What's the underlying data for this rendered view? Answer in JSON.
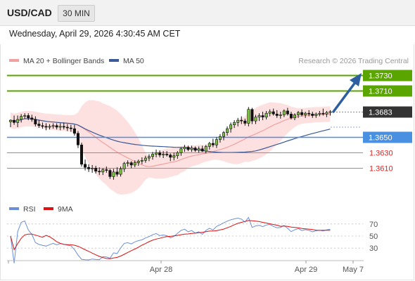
{
  "header": {
    "pair": "USD/CAD",
    "timeframe": "30 MIN",
    "datetime": "Wednesday, April 29, 2026 4:30:45 AM CET"
  },
  "legend": {
    "ma20_label": "MA 20 + Bollinger Bands",
    "ma50_label": "MA 50",
    "credit": "Research © 2026 Trading Central",
    "rsi_label": "RSI",
    "rsi_ma_label": "9MA"
  },
  "colors": {
    "bb_fill": "#fde1e1",
    "ma20": "#f2a0a0",
    "ma50": "#3b5998",
    "target": "#5aa500",
    "pivot": "#4a90e2",
    "support": "#e07070",
    "arrow": "#2d5fa0",
    "rsi": "#6a8fd8",
    "rsi_ma": "#dd1111"
  },
  "levels": [
    {
      "value": 1.373,
      "label": "1.3730",
      "kind": "target"
    },
    {
      "value": 1.371,
      "label": "1.3710",
      "kind": "target"
    },
    {
      "value": 1.3683,
      "label": "1.3683",
      "kind": "last"
    },
    {
      "value": 1.365,
      "label": "1.3650",
      "kind": "pivot"
    },
    {
      "value": 1.363,
      "label": "1.3630",
      "kind": "support"
    },
    {
      "value": 1.361,
      "label": "1.3610",
      "kind": "support"
    }
  ],
  "chart_data": [
    {
      "type": "candlestick",
      "title": "USD/CAD",
      "x_tick_labels": [
        "Apr 28",
        "Apr 29",
        "May 7"
      ],
      "y_range": [
        1.357,
        1.374
      ],
      "series": [
        {
          "name": "MA 20 + Bollinger Bands",
          "values": []
        },
        {
          "name": "MA 50",
          "values": []
        }
      ],
      "candles": [
        [
          1.367,
          1.3673,
          1.3663,
          1.3672
        ],
        [
          1.3672,
          1.3678,
          1.3666,
          1.3669
        ],
        [
          1.3669,
          1.3678,
          1.3663,
          1.3673
        ],
        [
          1.3673,
          1.368,
          1.3669,
          1.3677
        ],
        [
          1.3677,
          1.3681,
          1.3674,
          1.3678
        ],
        [
          1.3678,
          1.3681,
          1.3672,
          1.3675
        ],
        [
          1.3675,
          1.3679,
          1.367,
          1.3673
        ],
        [
          1.3673,
          1.3677,
          1.3664,
          1.3667
        ],
        [
          1.3667,
          1.3672,
          1.3662,
          1.3665
        ],
        [
          1.3665,
          1.3669,
          1.3661,
          1.3664
        ],
        [
          1.3664,
          1.3668,
          1.3659,
          1.3663
        ],
        [
          1.3663,
          1.3667,
          1.366,
          1.3664
        ],
        [
          1.3664,
          1.3668,
          1.3661,
          1.3665
        ],
        [
          1.3665,
          1.3668,
          1.366,
          1.3663
        ],
        [
          1.3663,
          1.3668,
          1.3659,
          1.3664
        ],
        [
          1.3664,
          1.3669,
          1.366,
          1.3663
        ],
        [
          1.3663,
          1.3667,
          1.3658,
          1.3662
        ],
        [
          1.3662,
          1.3666,
          1.3657,
          1.3661
        ],
        [
          1.3661,
          1.3666,
          1.3652,
          1.3655
        ],
        [
          1.3655,
          1.3658,
          1.3636,
          1.364
        ],
        [
          1.364,
          1.3643,
          1.3612,
          1.3615
        ],
        [
          1.3615,
          1.3621,
          1.3607,
          1.3611
        ],
        [
          1.3611,
          1.3615,
          1.3605,
          1.3609
        ],
        [
          1.3609,
          1.3614,
          1.3604,
          1.361
        ],
        [
          1.361,
          1.3613,
          1.3603,
          1.3606
        ],
        [
          1.3606,
          1.3611,
          1.3601,
          1.3605
        ],
        [
          1.3605,
          1.361,
          1.3601,
          1.3608
        ],
        [
          1.3608,
          1.3612,
          1.3604,
          1.3607
        ],
        [
          1.3607,
          1.3609,
          1.3596,
          1.3599
        ],
        [
          1.3599,
          1.3609,
          1.3595,
          1.3605
        ],
        [
          1.3605,
          1.3611,
          1.3599,
          1.3602
        ],
        [
          1.3602,
          1.3612,
          1.3599,
          1.3609
        ],
        [
          1.3609,
          1.3618,
          1.3605,
          1.3616
        ],
        [
          1.3616,
          1.362,
          1.3612,
          1.3617
        ],
        [
          1.3617,
          1.3619,
          1.361,
          1.3614
        ],
        [
          1.3614,
          1.362,
          1.3611,
          1.3617
        ],
        [
          1.3617,
          1.3621,
          1.3613,
          1.3619
        ],
        [
          1.3619,
          1.3624,
          1.3615,
          1.362
        ],
        [
          1.362,
          1.3626,
          1.3617,
          1.3623
        ],
        [
          1.3623,
          1.3628,
          1.3619,
          1.3625
        ],
        [
          1.3625,
          1.3631,
          1.3621,
          1.3628
        ],
        [
          1.3628,
          1.3634,
          1.3624,
          1.363
        ],
        [
          1.363,
          1.3633,
          1.3624,
          1.3627
        ],
        [
          1.3627,
          1.3632,
          1.3623,
          1.3628
        ],
        [
          1.3628,
          1.3632,
          1.3625,
          1.3627
        ],
        [
          1.3627,
          1.3629,
          1.3619,
          1.3624
        ],
        [
          1.3624,
          1.363,
          1.362,
          1.3626
        ],
        [
          1.3626,
          1.3632,
          1.3622,
          1.363
        ],
        [
          1.363,
          1.3637,
          1.3626,
          1.3635
        ],
        [
          1.3635,
          1.364,
          1.3631,
          1.3637
        ],
        [
          1.3637,
          1.3639,
          1.3632,
          1.3634
        ],
        [
          1.3634,
          1.3639,
          1.3631,
          1.3636
        ],
        [
          1.3636,
          1.3638,
          1.3631,
          1.3633
        ],
        [
          1.3633,
          1.3638,
          1.363,
          1.3635
        ],
        [
          1.3635,
          1.3639,
          1.3631,
          1.3632
        ],
        [
          1.3632,
          1.364,
          1.3629,
          1.3638
        ],
        [
          1.3638,
          1.3644,
          1.3634,
          1.3642
        ],
        [
          1.3642,
          1.3648,
          1.3637,
          1.364
        ],
        [
          1.364,
          1.365,
          1.3636,
          1.3647
        ],
        [
          1.3647,
          1.3654,
          1.3643,
          1.3651
        ],
        [
          1.3651,
          1.3658,
          1.3646,
          1.3656
        ],
        [
          1.3656,
          1.3664,
          1.3652,
          1.3661
        ],
        [
          1.3661,
          1.3669,
          1.3656,
          1.3666
        ],
        [
          1.3666,
          1.3672,
          1.3662,
          1.3669
        ],
        [
          1.3669,
          1.3675,
          1.3664,
          1.3672
        ],
        [
          1.3672,
          1.3677,
          1.3667,
          1.3671
        ],
        [
          1.3671,
          1.3674,
          1.3665,
          1.3668
        ],
        [
          1.3668,
          1.3689,
          1.3664,
          1.3686
        ],
        [
          1.3686,
          1.3688,
          1.3667,
          1.3671
        ],
        [
          1.3671,
          1.3679,
          1.3667,
          1.3676
        ],
        [
          1.3676,
          1.3681,
          1.3671,
          1.3678
        ],
        [
          1.3678,
          1.3683,
          1.3672,
          1.3676
        ],
        [
          1.3676,
          1.3684,
          1.3673,
          1.3681
        ],
        [
          1.3681,
          1.3686,
          1.3677,
          1.3683
        ],
        [
          1.3683,
          1.3687,
          1.3678,
          1.368
        ],
        [
          1.368,
          1.3685,
          1.3675,
          1.3678
        ],
        [
          1.3678,
          1.3683,
          1.3674,
          1.3679
        ],
        [
          1.3679,
          1.3686,
          1.3676,
          1.3684
        ],
        [
          1.3684,
          1.3688,
          1.3678,
          1.368
        ],
        [
          1.368,
          1.3683,
          1.3673,
          1.3675
        ],
        [
          1.3675,
          1.3681,
          1.3672,
          1.3679
        ],
        [
          1.3679,
          1.3684,
          1.3675,
          1.3682
        ],
        [
          1.3682,
          1.3686,
          1.3677,
          1.3679
        ],
        [
          1.3679,
          1.3683,
          1.3675,
          1.3681
        ],
        [
          1.3681,
          1.3685,
          1.3677,
          1.368
        ],
        [
          1.368,
          1.3683,
          1.3675,
          1.3678
        ],
        [
          1.3678,
          1.3682,
          1.3675,
          1.368
        ],
        [
          1.368,
          1.3684,
          1.3677,
          1.3681
        ],
        [
          1.3681,
          1.3687,
          1.3678,
          1.368
        ],
        [
          1.368,
          1.3684,
          1.3676,
          1.3682
        ],
        [
          1.3682,
          1.3685,
          1.3678,
          1.3683
        ]
      ]
    },
    {
      "type": "line",
      "title": "RSI",
      "y_range": [
        20,
        80
      ],
      "y_ticks": [
        70,
        50,
        30
      ],
      "series": [
        {
          "name": "RSI",
          "values": []
        },
        {
          "name": "9MA",
          "values": []
        }
      ]
    }
  ]
}
